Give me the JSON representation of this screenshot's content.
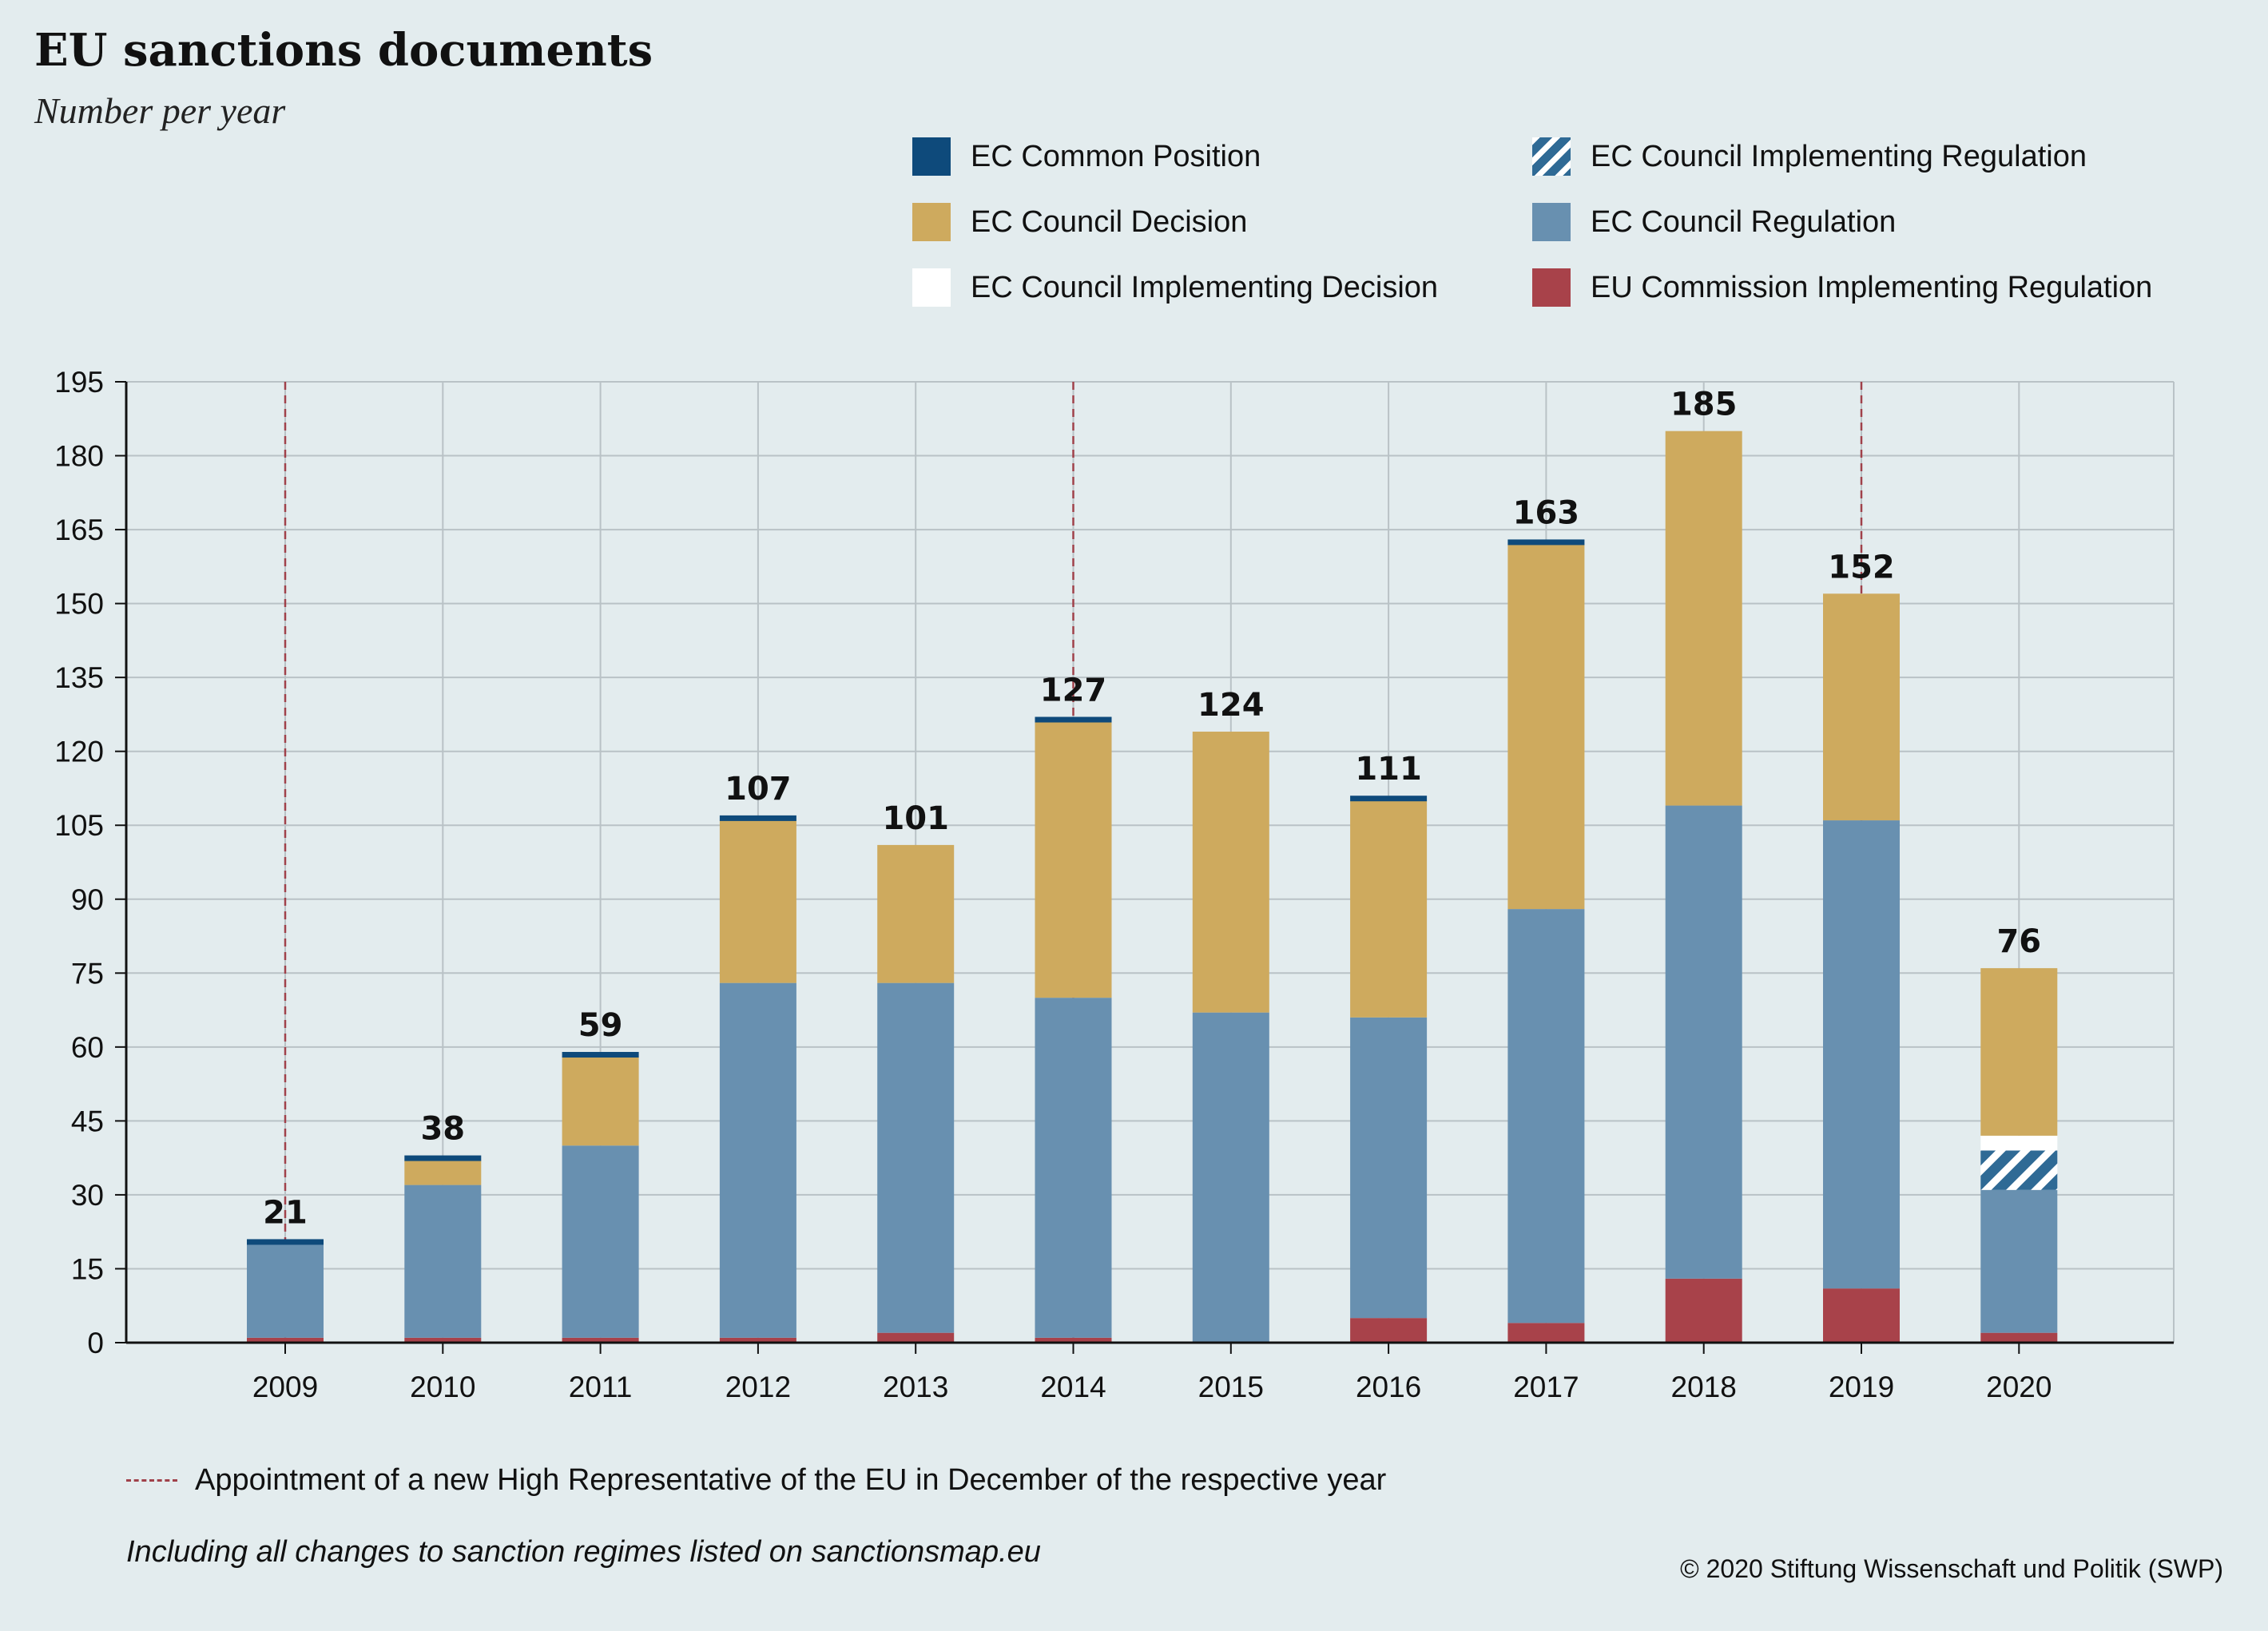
{
  "header": {
    "title": "EU sanctions documents",
    "subtitle": "Number per year"
  },
  "legend": [
    {
      "label": "EC Common Position",
      "color": "#0e4a7b",
      "pattern": "solid"
    },
    {
      "label": "EC Council Decision",
      "color": "#ceaa5e",
      "pattern": "solid"
    },
    {
      "label": "EC Council Implementing Decision",
      "color": "#ffffff",
      "pattern": "solid"
    },
    {
      "label": "EC Council Implementing Regulation",
      "color": "#2f6a95",
      "pattern": "hatched"
    },
    {
      "label": "EC Council Regulation",
      "color": "#6890b0",
      "pattern": "solid"
    },
    {
      "label": "EU Commission Implementing Regulation",
      "color": "#a8424a",
      "pattern": "solid"
    }
  ],
  "chart_data": {
    "type": "bar",
    "stacked": true,
    "title": "EU sanctions documents",
    "subtitle": "Number per year",
    "categories": [
      "2009",
      "2010",
      "2011",
      "2012",
      "2013",
      "2014",
      "2015",
      "2016",
      "2017",
      "2018",
      "2019",
      "2020"
    ],
    "ylim": [
      0,
      195
    ],
    "yticks": [
      0,
      15,
      30,
      45,
      60,
      75,
      90,
      105,
      120,
      135,
      150,
      165,
      180,
      195
    ],
    "grid": true,
    "legend_position": "top-right",
    "totals": [
      21,
      38,
      59,
      107,
      101,
      127,
      124,
      111,
      163,
      185,
      152,
      76
    ],
    "series": [
      {
        "name": "EU Commission Implementing Regulation",
        "color": "#a8424a",
        "values": [
          1,
          1,
          1,
          1,
          2,
          1,
          0,
          5,
          4,
          13,
          11,
          2
        ]
      },
      {
        "name": "EC Council Regulation",
        "color": "#6890b0",
        "values": [
          19,
          31,
          39,
          72,
          71,
          69,
          67,
          61,
          84,
          96,
          95,
          29
        ]
      },
      {
        "name": "EC Council Implementing Regulation",
        "color": "#2f6a95",
        "pattern": "hatched",
        "values": [
          0,
          0,
          0,
          0,
          0,
          0,
          0,
          0,
          0,
          0,
          0,
          8
        ]
      },
      {
        "name": "EC Council Implementing Decision",
        "color": "#ffffff",
        "values": [
          0,
          0,
          0,
          0,
          0,
          0,
          0,
          0,
          0,
          0,
          0,
          3
        ]
      },
      {
        "name": "EC Council Decision",
        "color": "#ceaa5e",
        "values": [
          0,
          5,
          18,
          33,
          28,
          56,
          57,
          44,
          74,
          76,
          46,
          34
        ]
      },
      {
        "name": "EC Common Position",
        "color": "#0e4a7b",
        "values": [
          1,
          1,
          1,
          1,
          0,
          1,
          0,
          1,
          1,
          0,
          0,
          0
        ]
      }
    ],
    "annotations": {
      "high_representative_years": [
        "2009",
        "2014",
        "2019"
      ],
      "marker_color": "#a0414a"
    }
  },
  "notes": {
    "marker_note": "Appointment of a new High Representative of the EU in December of the respective year",
    "footnote": "Including all changes to sanction regimes listed on sanctionsmap.eu",
    "copyright": "© 2020 Stiftung Wissenschaft und Politik (SWP)"
  }
}
